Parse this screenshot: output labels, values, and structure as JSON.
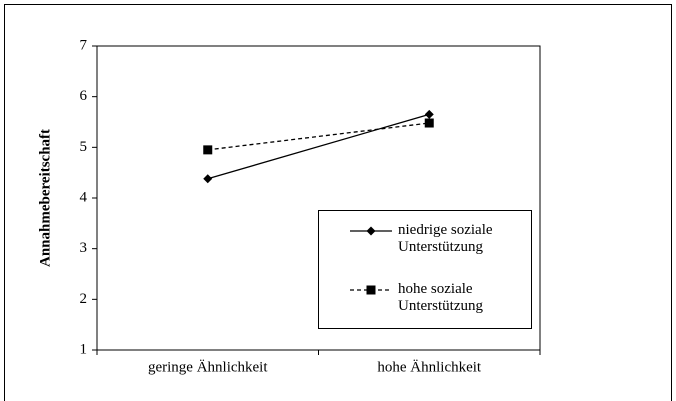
{
  "chart_data": {
    "type": "line",
    "y_label": "Annahmebereitschaft",
    "categories": [
      "geringe Ähnlichkeit",
      "hohe Ähnlichkeit"
    ],
    "series": [
      {
        "name": "niedrige soziale Unterstützung",
        "color": "#000000",
        "marker": "diamond",
        "dash": false,
        "values": [
          4.38,
          5.65
        ]
      },
      {
        "name": "hohe soziale Unterstützung",
        "color": "#000000",
        "marker": "square",
        "dash": true,
        "values": [
          4.95,
          5.48
        ]
      }
    ],
    "ylim": [
      1,
      7
    ],
    "yticks": [
      1,
      2,
      3,
      4,
      5,
      6,
      7
    ]
  }
}
